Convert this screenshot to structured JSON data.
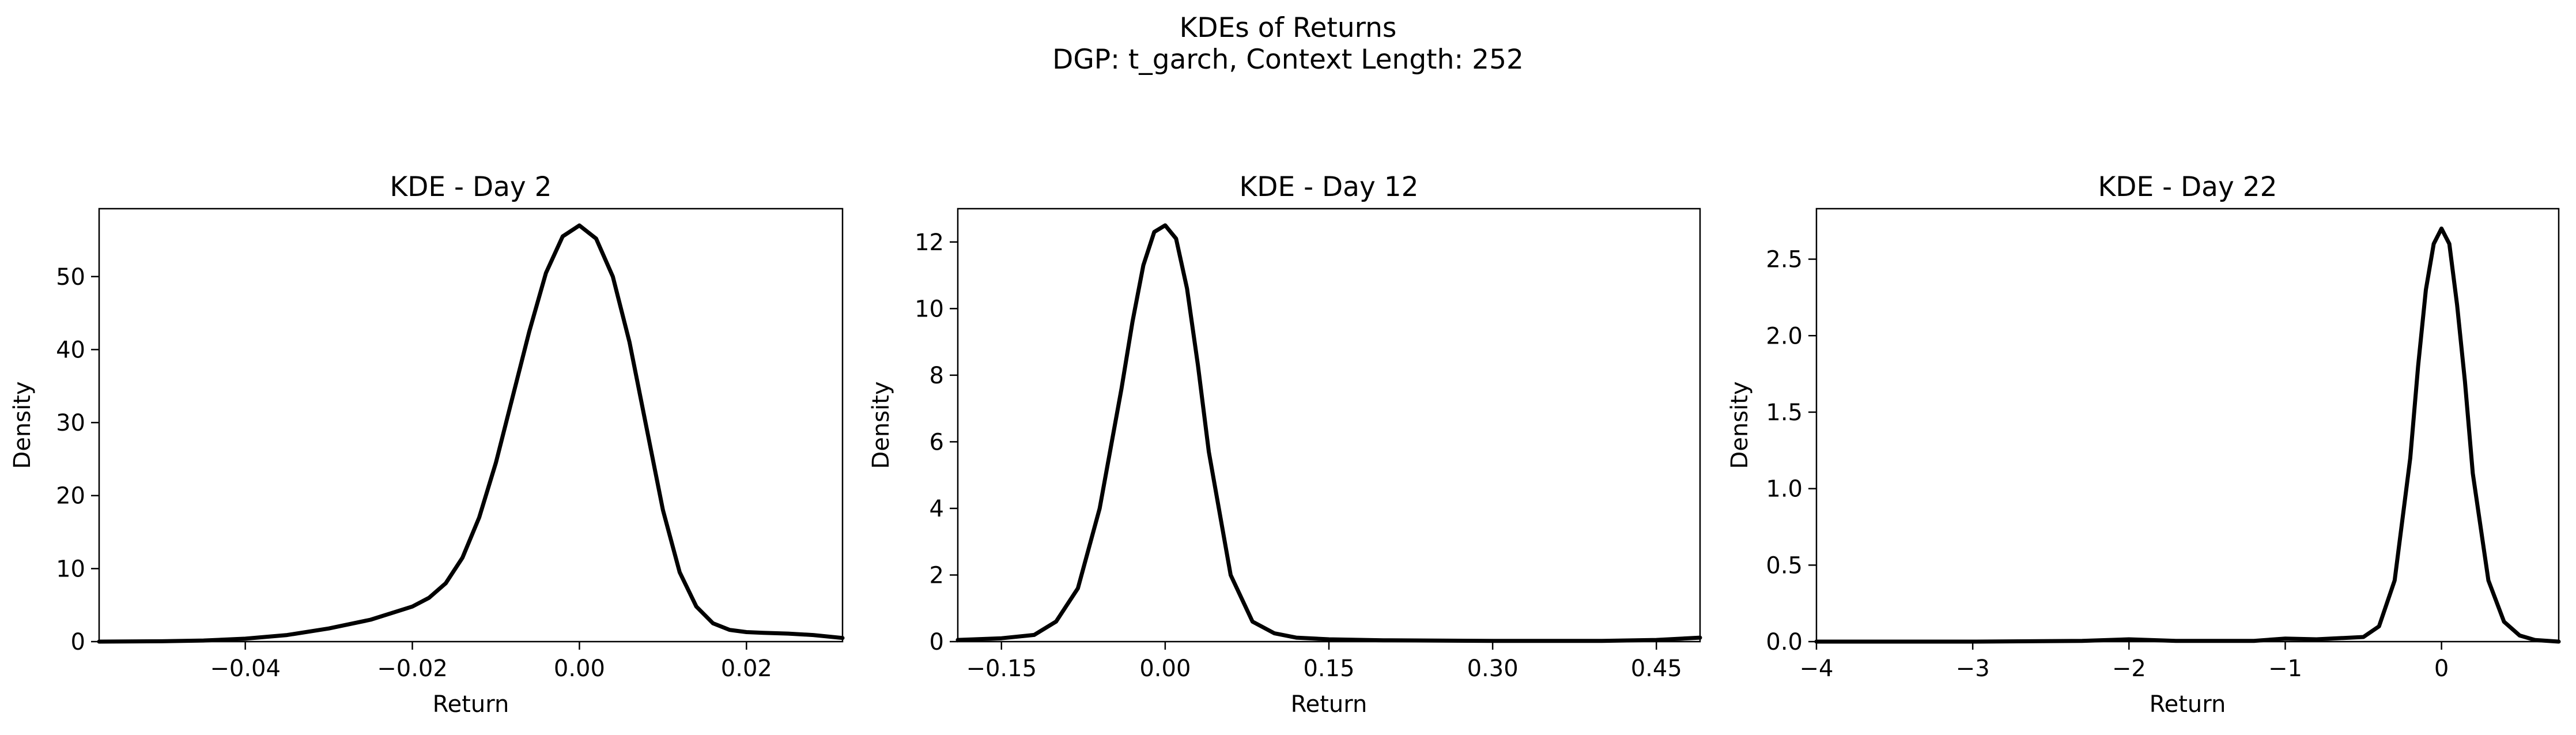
{
  "figure": {
    "title": "KDEs of Returns",
    "subtitle": "DGP: t_garch, Context Length: 252"
  },
  "chart_data": [
    {
      "type": "line",
      "title": "KDE - Day 2",
      "xlabel": "Return",
      "ylabel": "Density",
      "xlim": [
        -0.0575,
        0.0315
      ],
      "ylim": [
        0,
        59.3
      ],
      "xticks": [
        -0.04,
        -0.02,
        0.0,
        0.02
      ],
      "xtick_labels": [
        "−0.04",
        "−0.02",
        "0.00",
        "0.02"
      ],
      "yticks": [
        0,
        10,
        20,
        30,
        40,
        50
      ],
      "ytick_labels": [
        "0",
        "10",
        "20",
        "30",
        "40",
        "50"
      ],
      "grid": false,
      "series": [
        {
          "color": "#000000",
          "x": [
            -0.0575,
            -0.05,
            -0.045,
            -0.04,
            -0.035,
            -0.03,
            -0.025,
            -0.02,
            -0.018,
            -0.016,
            -0.014,
            -0.012,
            -0.01,
            -0.008,
            -0.006,
            -0.004,
            -0.002,
            0.0,
            0.002,
            0.004,
            0.006,
            0.008,
            0.01,
            0.012,
            0.014,
            0.016,
            0.018,
            0.02,
            0.022,
            0.025,
            0.028,
            0.0315
          ],
          "y": [
            0.0,
            0.05,
            0.15,
            0.4,
            0.9,
            1.8,
            3.0,
            4.8,
            6.0,
            8.0,
            11.5,
            17.0,
            24.5,
            33.5,
            42.5,
            50.5,
            55.5,
            57.0,
            55.2,
            50.0,
            41.0,
            29.5,
            18.0,
            9.5,
            4.8,
            2.5,
            1.6,
            1.3,
            1.2,
            1.1,
            0.9,
            0.5
          ]
        }
      ]
    },
    {
      "type": "line",
      "title": "KDE - Day 12",
      "xlabel": "Return",
      "ylabel": "Density",
      "xlim": [
        -0.19,
        0.49
      ],
      "ylim": [
        0,
        13.0
      ],
      "xticks": [
        -0.15,
        0.0,
        0.15,
        0.3,
        0.45
      ],
      "xtick_labels": [
        "−0.15",
        "0.00",
        "0.15",
        "0.30",
        "0.45"
      ],
      "yticks": [
        0,
        2,
        4,
        6,
        8,
        10,
        12
      ],
      "ytick_labels": [
        "0",
        "2",
        "4",
        "6",
        "8",
        "10",
        "12"
      ],
      "grid": false,
      "series": [
        {
          "color": "#000000",
          "x": [
            -0.19,
            -0.15,
            -0.12,
            -0.1,
            -0.08,
            -0.06,
            -0.04,
            -0.03,
            -0.02,
            -0.01,
            0.0,
            0.01,
            0.02,
            0.03,
            0.04,
            0.06,
            0.08,
            0.1,
            0.12,
            0.15,
            0.2,
            0.3,
            0.4,
            0.45,
            0.49
          ],
          "y": [
            0.05,
            0.1,
            0.2,
            0.6,
            1.6,
            4.0,
            7.6,
            9.6,
            11.3,
            12.3,
            12.5,
            12.1,
            10.6,
            8.3,
            5.7,
            2.0,
            0.6,
            0.25,
            0.12,
            0.07,
            0.04,
            0.02,
            0.02,
            0.05,
            0.12
          ]
        }
      ]
    },
    {
      "type": "line",
      "title": "KDE - Day 22",
      "xlabel": "Return",
      "ylabel": "Density",
      "xlim": [
        -4.0,
        0.75
      ],
      "ylim": [
        0,
        2.83
      ],
      "xticks": [
        -4,
        -3,
        -2,
        -1,
        0
      ],
      "xtick_labels": [
        "−4",
        "−3",
        "−2",
        "−1",
        "0"
      ],
      "yticks": [
        0.0,
        0.5,
        1.0,
        1.5,
        2.0,
        2.5
      ],
      "ytick_labels": [
        "0.0",
        "0.5",
        "1.0",
        "1.5",
        "2.0",
        "2.5"
      ],
      "grid": false,
      "series": [
        {
          "color": "#000000",
          "x": [
            -4.0,
            -3.0,
            -2.3,
            -2.0,
            -1.7,
            -1.2,
            -1.0,
            -0.8,
            -0.5,
            -0.4,
            -0.3,
            -0.2,
            -0.15,
            -0.1,
            -0.05,
            0.0,
            0.05,
            0.1,
            0.15,
            0.2,
            0.3,
            0.4,
            0.5,
            0.6,
            0.75
          ],
          "y": [
            0.0,
            0.0,
            0.005,
            0.015,
            0.005,
            0.005,
            0.02,
            0.015,
            0.03,
            0.1,
            0.4,
            1.2,
            1.8,
            2.3,
            2.6,
            2.7,
            2.6,
            2.2,
            1.7,
            1.1,
            0.4,
            0.13,
            0.04,
            0.01,
            0.0
          ]
        }
      ]
    }
  ]
}
